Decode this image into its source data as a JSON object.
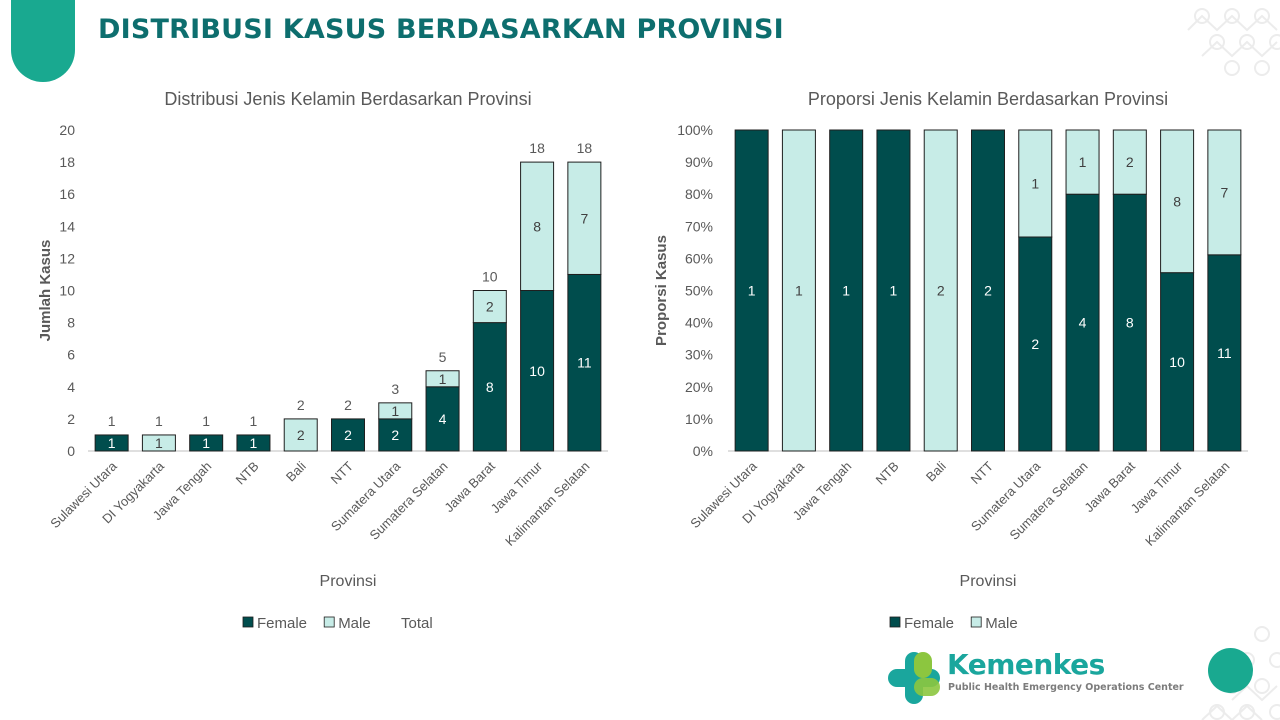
{
  "page_title": "DISTRIBUSI KASUS BERDASARKAN PROVINSI",
  "logo": {
    "name": "Kemenkes",
    "subtitle": "Public Health Emergency Operations Center"
  },
  "colors": {
    "female": "#004d4d",
    "male": "#c7ece7",
    "accent": "#19a990",
    "title": "#0d6e6e"
  },
  "chart_data": [
    {
      "type": "bar",
      "stacked": true,
      "title": "Distribusi Jenis Kelamin Berdasarkan Provinsi",
      "xlabel": "Provinsi",
      "ylabel": "Jumlah Kasus",
      "ylim": [
        0,
        20
      ],
      "yticks": [
        "0",
        "2",
        "4",
        "6",
        "8",
        "10",
        "12",
        "14",
        "16",
        "18",
        "20"
      ],
      "categories": [
        "Sulawesi Utara",
        "DI Yogyakarta",
        "Jawa Tengah",
        "NTB",
        "Bali",
        "NTT",
        "Sumatera Utara",
        "Sumatera Selatan",
        "Jawa Barat",
        "Jawa Timur",
        "Kalimantan Selatan"
      ],
      "series": [
        {
          "name": "Female",
          "values": [
            1,
            0,
            1,
            1,
            0,
            2,
            2,
            4,
            8,
            10,
            11
          ]
        },
        {
          "name": "Male",
          "values": [
            0,
            1,
            0,
            0,
            2,
            0,
            1,
            1,
            2,
            8,
            7
          ]
        }
      ],
      "totals": [
        1,
        1,
        1,
        1,
        2,
        2,
        3,
        5,
        10,
        18,
        18
      ],
      "legend": [
        "Female",
        "Male",
        "Total"
      ],
      "legend_position": "bottom",
      "grid": false
    },
    {
      "type": "bar",
      "stacked": true,
      "percent": true,
      "title": "Proporsi Jenis Kelamin Berdasarkan Provinsi",
      "xlabel": "Provinsi",
      "ylabel": "Proporsi Kasus",
      "ylim": [
        0,
        100
      ],
      "yticks": [
        "0%",
        "10%",
        "20%",
        "30%",
        "40%",
        "50%",
        "60%",
        "70%",
        "80%",
        "90%",
        "100%"
      ],
      "categories": [
        "Sulawesi Utara",
        "DI Yogyakarta",
        "Jawa Tengah",
        "NTB",
        "Bali",
        "NTT",
        "Sumatera Utara",
        "Sumatera Selatan",
        "Jawa Barat",
        "Jawa Timur",
        "Kalimantan Selatan"
      ],
      "series": [
        {
          "name": "Female",
          "values": [
            1,
            0,
            1,
            1,
            0,
            2,
            2,
            4,
            8,
            10,
            11
          ]
        },
        {
          "name": "Male",
          "values": [
            0,
            1,
            0,
            0,
            2,
            0,
            1,
            1,
            2,
            8,
            7
          ]
        }
      ],
      "legend": [
        "Female",
        "Male"
      ],
      "legend_position": "bottom",
      "grid": false
    }
  ]
}
